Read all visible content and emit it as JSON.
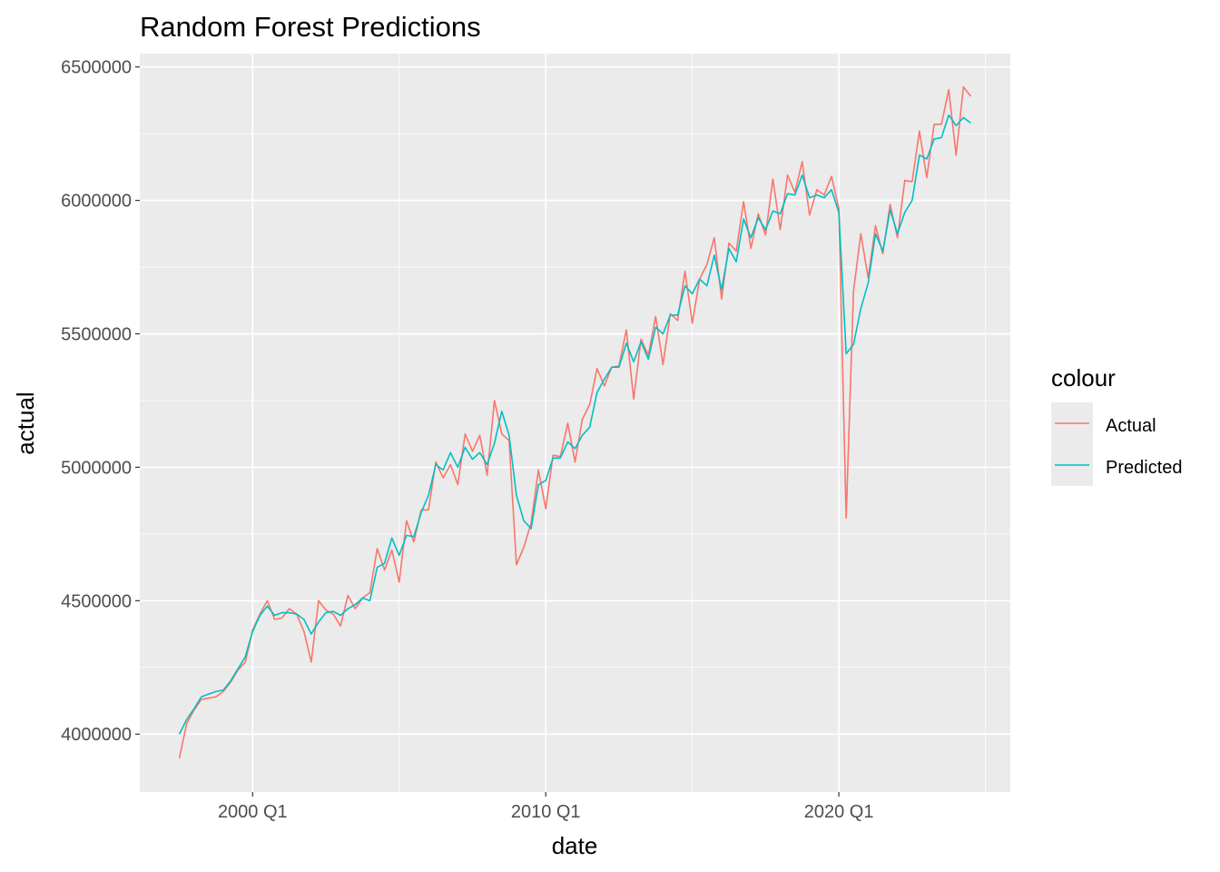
{
  "chart_data": {
    "type": "line",
    "title": "Random Forest Predictions",
    "xlabel": "date",
    "ylabel": "actual",
    "x_ticks": [
      "2000 Q1",
      "2010 Q1",
      "2020 Q1"
    ],
    "x_tick_years": [
      2000,
      2010,
      2020
    ],
    "y_ticks": [
      "4000000",
      "4500000",
      "5000000",
      "5500000",
      "6000000",
      "6500000"
    ],
    "y_tick_values": [
      4000000,
      4500000,
      5000000,
      5500000,
      6000000,
      6500000
    ],
    "xlim": [
      1996.15,
      2025.85
    ],
    "ylim": [
      3783000,
      6550000
    ],
    "grid": true,
    "legend": {
      "title": "colour",
      "position": "right"
    },
    "series": [
      {
        "name": "Actual",
        "color": "#F8766D",
        "points": [
          [
            1997.5,
            3910000
          ],
          [
            1997.75,
            4040000
          ],
          [
            1998.0,
            4090000
          ],
          [
            1998.25,
            4130000
          ],
          [
            1998.5,
            4135000
          ],
          [
            1998.75,
            4140000
          ],
          [
            1999.0,
            4160000
          ],
          [
            1999.25,
            4195000
          ],
          [
            1999.5,
            4240000
          ],
          [
            1999.75,
            4270000
          ],
          [
            2000.0,
            4390000
          ],
          [
            2000.25,
            4450000
          ],
          [
            2000.5,
            4500000
          ],
          [
            2000.75,
            4430000
          ],
          [
            2001.0,
            4435000
          ],
          [
            2001.25,
            4470000
          ],
          [
            2001.5,
            4450000
          ],
          [
            2001.75,
            4385000
          ],
          [
            2002.0,
            4270000
          ],
          [
            2002.25,
            4500000
          ],
          [
            2002.5,
            4465000
          ],
          [
            2002.75,
            4450000
          ],
          [
            2003.0,
            4405000
          ],
          [
            2003.25,
            4520000
          ],
          [
            2003.5,
            4470000
          ],
          [
            2003.75,
            4510000
          ],
          [
            2004.0,
            4530000
          ],
          [
            2004.25,
            4695000
          ],
          [
            2004.5,
            4615000
          ],
          [
            2004.75,
            4690000
          ],
          [
            2005.0,
            4570000
          ],
          [
            2005.25,
            4800000
          ],
          [
            2005.5,
            4720000
          ],
          [
            2005.75,
            4840000
          ],
          [
            2006.0,
            4840000
          ],
          [
            2006.25,
            5020000
          ],
          [
            2006.5,
            4960000
          ],
          [
            2006.75,
            5010000
          ],
          [
            2007.0,
            4935000
          ],
          [
            2007.25,
            5125000
          ],
          [
            2007.5,
            5060000
          ],
          [
            2007.75,
            5120000
          ],
          [
            2008.0,
            4970000
          ],
          [
            2008.25,
            5250000
          ],
          [
            2008.5,
            5125000
          ],
          [
            2008.75,
            5100000
          ],
          [
            2009.0,
            4635000
          ],
          [
            2009.25,
            4700000
          ],
          [
            2009.5,
            4790000
          ],
          [
            2009.75,
            4990000
          ],
          [
            2010.0,
            4845000
          ],
          [
            2010.25,
            5045000
          ],
          [
            2010.5,
            5040000
          ],
          [
            2010.75,
            5165000
          ],
          [
            2011.0,
            5020000
          ],
          [
            2011.25,
            5180000
          ],
          [
            2011.5,
            5235000
          ],
          [
            2011.75,
            5370000
          ],
          [
            2012.0,
            5305000
          ],
          [
            2012.25,
            5375000
          ],
          [
            2012.5,
            5380000
          ],
          [
            2012.75,
            5515000
          ],
          [
            2013.0,
            5255000
          ],
          [
            2013.25,
            5480000
          ],
          [
            2013.5,
            5420000
          ],
          [
            2013.75,
            5565000
          ],
          [
            2014.0,
            5385000
          ],
          [
            2014.25,
            5575000
          ],
          [
            2014.5,
            5550000
          ],
          [
            2014.75,
            5735000
          ],
          [
            2015.0,
            5540000
          ],
          [
            2015.25,
            5705000
          ],
          [
            2015.5,
            5760000
          ],
          [
            2015.75,
            5860000
          ],
          [
            2016.0,
            5630000
          ],
          [
            2016.25,
            5840000
          ],
          [
            2016.5,
            5810000
          ],
          [
            2016.75,
            5995000
          ],
          [
            2017.0,
            5820000
          ],
          [
            2017.25,
            5950000
          ],
          [
            2017.5,
            5870000
          ],
          [
            2017.75,
            6080000
          ],
          [
            2018.0,
            5890000
          ],
          [
            2018.25,
            6095000
          ],
          [
            2018.5,
            6030000
          ],
          [
            2018.75,
            6145000
          ],
          [
            2019.0,
            5945000
          ],
          [
            2019.25,
            6040000
          ],
          [
            2019.5,
            6020000
          ],
          [
            2019.75,
            6090000
          ],
          [
            2020.0,
            5970000
          ],
          [
            2020.25,
            4810000
          ],
          [
            2020.5,
            5660000
          ],
          [
            2020.75,
            5875000
          ],
          [
            2021.0,
            5710000
          ],
          [
            2021.25,
            5905000
          ],
          [
            2021.5,
            5800000
          ],
          [
            2021.75,
            5985000
          ],
          [
            2022.0,
            5860000
          ],
          [
            2022.25,
            6075000
          ],
          [
            2022.5,
            6070000
          ],
          [
            2022.75,
            6260000
          ],
          [
            2023.0,
            6085000
          ],
          [
            2023.25,
            6285000
          ],
          [
            2023.5,
            6285000
          ],
          [
            2023.75,
            6415000
          ],
          [
            2024.0,
            6170000
          ],
          [
            2024.25,
            6425000
          ],
          [
            2024.5,
            6390000
          ]
        ]
      },
      {
        "name": "Predicted",
        "color": "#00BFC4",
        "points": [
          [
            1997.5,
            4000000
          ],
          [
            1997.75,
            4055000
          ],
          [
            1998.0,
            4095000
          ],
          [
            1998.25,
            4140000
          ],
          [
            1998.5,
            4150000
          ],
          [
            1998.75,
            4160000
          ],
          [
            1999.0,
            4165000
          ],
          [
            1999.25,
            4200000
          ],
          [
            1999.5,
            4245000
          ],
          [
            1999.75,
            4290000
          ],
          [
            2000.0,
            4385000
          ],
          [
            2000.25,
            4445000
          ],
          [
            2000.5,
            4480000
          ],
          [
            2000.75,
            4445000
          ],
          [
            2001.0,
            4455000
          ],
          [
            2001.25,
            4455000
          ],
          [
            2001.5,
            4450000
          ],
          [
            2001.75,
            4430000
          ],
          [
            2002.0,
            4375000
          ],
          [
            2002.25,
            4420000
          ],
          [
            2002.5,
            4455000
          ],
          [
            2002.75,
            4460000
          ],
          [
            2003.0,
            4445000
          ],
          [
            2003.25,
            4470000
          ],
          [
            2003.5,
            4485000
          ],
          [
            2003.75,
            4510000
          ],
          [
            2004.0,
            4500000
          ],
          [
            2004.25,
            4625000
          ],
          [
            2004.5,
            4640000
          ],
          [
            2004.75,
            4735000
          ],
          [
            2005.0,
            4670000
          ],
          [
            2005.25,
            4745000
          ],
          [
            2005.5,
            4740000
          ],
          [
            2005.75,
            4830000
          ],
          [
            2006.0,
            4895000
          ],
          [
            2006.25,
            5010000
          ],
          [
            2006.5,
            4990000
          ],
          [
            2006.75,
            5055000
          ],
          [
            2007.0,
            5000000
          ],
          [
            2007.25,
            5075000
          ],
          [
            2007.5,
            5030000
          ],
          [
            2007.75,
            5055000
          ],
          [
            2008.0,
            5010000
          ],
          [
            2008.25,
            5090000
          ],
          [
            2008.5,
            5210000
          ],
          [
            2008.75,
            5120000
          ],
          [
            2009.0,
            4895000
          ],
          [
            2009.25,
            4800000
          ],
          [
            2009.5,
            4770000
          ],
          [
            2009.75,
            4935000
          ],
          [
            2010.0,
            4950000
          ],
          [
            2010.25,
            5035000
          ],
          [
            2010.5,
            5035000
          ],
          [
            2010.75,
            5095000
          ],
          [
            2011.0,
            5070000
          ],
          [
            2011.25,
            5120000
          ],
          [
            2011.5,
            5150000
          ],
          [
            2011.75,
            5280000
          ],
          [
            2012.0,
            5330000
          ],
          [
            2012.25,
            5375000
          ],
          [
            2012.5,
            5375000
          ],
          [
            2012.75,
            5465000
          ],
          [
            2013.0,
            5395000
          ],
          [
            2013.25,
            5470000
          ],
          [
            2013.5,
            5405000
          ],
          [
            2013.75,
            5525000
          ],
          [
            2014.0,
            5500000
          ],
          [
            2014.25,
            5570000
          ],
          [
            2014.5,
            5570000
          ],
          [
            2014.75,
            5680000
          ],
          [
            2015.0,
            5650000
          ],
          [
            2015.25,
            5705000
          ],
          [
            2015.5,
            5680000
          ],
          [
            2015.75,
            5795000
          ],
          [
            2016.0,
            5665000
          ],
          [
            2016.25,
            5820000
          ],
          [
            2016.5,
            5770000
          ],
          [
            2016.75,
            5930000
          ],
          [
            2017.0,
            5860000
          ],
          [
            2017.25,
            5935000
          ],
          [
            2017.5,
            5890000
          ],
          [
            2017.75,
            5960000
          ],
          [
            2018.0,
            5950000
          ],
          [
            2018.25,
            6025000
          ],
          [
            2018.5,
            6020000
          ],
          [
            2018.75,
            6095000
          ],
          [
            2019.0,
            6010000
          ],
          [
            2019.25,
            6020000
          ],
          [
            2019.5,
            6010000
          ],
          [
            2019.75,
            6040000
          ],
          [
            2020.0,
            5955000
          ],
          [
            2020.25,
            5425000
          ],
          [
            2020.5,
            5460000
          ],
          [
            2020.75,
            5595000
          ],
          [
            2021.0,
            5690000
          ],
          [
            2021.25,
            5875000
          ],
          [
            2021.5,
            5810000
          ],
          [
            2021.75,
            5965000
          ],
          [
            2022.0,
            5875000
          ],
          [
            2022.25,
            5955000
          ],
          [
            2022.5,
            6000000
          ],
          [
            2022.75,
            6170000
          ],
          [
            2023.0,
            6155000
          ],
          [
            2023.25,
            6230000
          ],
          [
            2023.5,
            6235000
          ],
          [
            2023.75,
            6320000
          ],
          [
            2024.0,
            6280000
          ],
          [
            2024.25,
            6310000
          ],
          [
            2024.5,
            6290000
          ]
        ]
      }
    ]
  }
}
